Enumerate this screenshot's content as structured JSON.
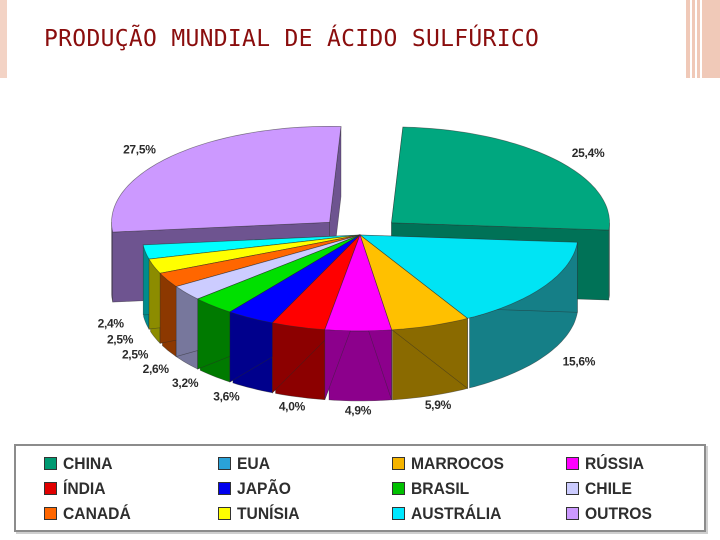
{
  "title": "PRODUÇÃO MUNDIAL DE ÁCIDO SULFÚRICO",
  "chart_data": {
    "type": "pie",
    "title": "PRODUÇÃO MUNDIAL DE ÁCIDO SULFÚRICO",
    "three_d": true,
    "legend_position": "bottom",
    "slices": [
      {
        "name": "CHINA",
        "value": 25.4,
        "label": "25,4%",
        "color": "#00a77f",
        "side": "#007257",
        "exploded": true
      },
      {
        "name": "EUA",
        "value": 15.6,
        "label": "15,6%",
        "color": "#00e4f4",
        "side": "#157f87"
      },
      {
        "name": "MARROCOS",
        "value": 5.9,
        "label": "5,9%",
        "color": "#ffc000",
        "side": "#8a6a00"
      },
      {
        "name": "RÚSSIA",
        "value": 4.9,
        "label": "4,9%",
        "color": "#ff00ff",
        "side": "#8c008c"
      },
      {
        "name": "ÍNDIA",
        "value": 4.0,
        "label": "4,0%",
        "color": "#ff0000",
        "side": "#8c0000"
      },
      {
        "name": "JAPÃO",
        "value": 3.6,
        "label": "3,6%",
        "color": "#0000ff",
        "side": "#00008c"
      },
      {
        "name": "BRASIL",
        "value": 3.2,
        "label": "3,2%",
        "color": "#00e000",
        "side": "#007a00"
      },
      {
        "name": "CHILE",
        "value": 2.6,
        "label": "2,6%",
        "color": "#ccccff",
        "side": "#77779c"
      },
      {
        "name": "CANADÁ",
        "value": 2.5,
        "label": "2,5%",
        "color": "#ff6600",
        "side": "#8c3800"
      },
      {
        "name": "TUNÍSIA",
        "value": 2.5,
        "label": "2,5%",
        "color": "#ffff00",
        "side": "#8c8c00"
      },
      {
        "name": "AUSTRÁLIA",
        "value": 2.4,
        "label": "2,4%",
        "color": "#00ffff",
        "side": "#008c8c"
      },
      {
        "name": "OUTROS",
        "value": 27.5,
        "label": "27,5%",
        "color": "#cc99ff",
        "side": "#6e5490",
        "exploded": true
      }
    ]
  },
  "legend": [
    {
      "label": "CHINA",
      "color": "#009a72"
    },
    {
      "label": "EUA",
      "color": "#2aa2d8"
    },
    {
      "label": "MARROCOS",
      "color": "#f5b400"
    },
    {
      "label": "RÚSSIA",
      "color": "#ff00ff"
    },
    {
      "label": "ÍNDIA",
      "color": "#e00000"
    },
    {
      "label": "JAPÃO",
      "color": "#0000ee"
    },
    {
      "label": "BRASIL",
      "color": "#00c000"
    },
    {
      "label": "CHILE",
      "color": "#ccccff"
    },
    {
      "label": "CANADÁ",
      "color": "#ff6600"
    },
    {
      "label": "TUNÍSIA",
      "color": "#ffff00"
    },
    {
      "label": "AUSTRÁLIA",
      "color": "#00e8ff"
    },
    {
      "label": "OUTROS",
      "color": "#cc99ff"
    }
  ]
}
